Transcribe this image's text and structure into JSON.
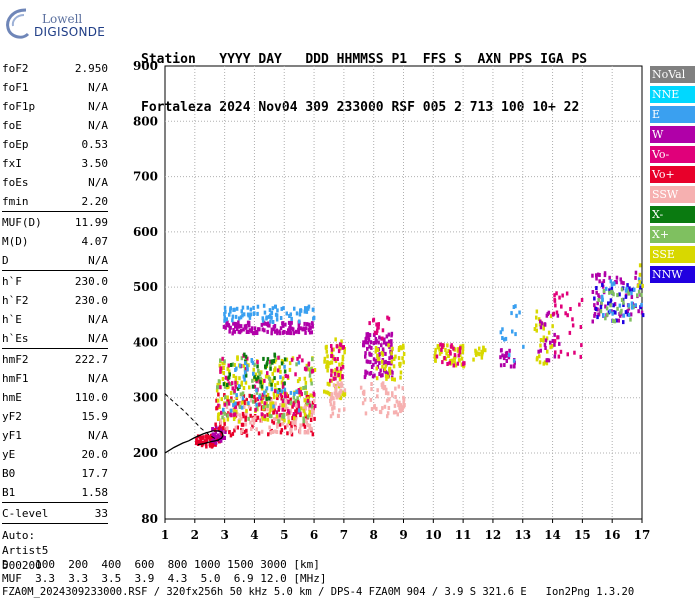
{
  "logo": {
    "line1": "Lowell",
    "line2": "DIGISONDE"
  },
  "header": {
    "row1": "Station   YYYY DAY   DDD HHMMSS P1  FFS S  AXN PPS IGA PS",
    "row2": "Fortaleza 2024 Nov04 309 233000 RSF 005 2 713 100 10+ 22"
  },
  "params": {
    "group1": [
      {
        "k": "foF2",
        "v": "2.950"
      },
      {
        "k": "foF1",
        "v": "N/A"
      },
      {
        "k": "foF1p",
        "v": "N/A"
      },
      {
        "k": "foE",
        "v": "N/A"
      },
      {
        "k": "foEp",
        "v": "0.53"
      },
      {
        "k": "fxI",
        "v": "3.50"
      },
      {
        "k": "foEs",
        "v": "N/A"
      },
      {
        "k": "fmin",
        "v": "2.20"
      }
    ],
    "group2": [
      {
        "k": "MUF(D)",
        "v": "11.99"
      },
      {
        "k": "M(D)",
        "v": "4.07"
      },
      {
        "k": "D",
        "v": "N/A"
      }
    ],
    "group3": [
      {
        "k": "h`F",
        "v": "230.0"
      },
      {
        "k": "h`F2",
        "v": "230.0"
      },
      {
        "k": "h`E",
        "v": "N/A"
      },
      {
        "k": "h`Es",
        "v": "N/A"
      }
    ],
    "group4": [
      {
        "k": "hmF2",
        "v": "222.7"
      },
      {
        "k": "hmF1",
        "v": "N/A"
      },
      {
        "k": "hmE",
        "v": "110.0"
      },
      {
        "k": "yF2",
        "v": "15.9"
      },
      {
        "k": "yF1",
        "v": "N/A"
      },
      {
        "k": "yE",
        "v": "20.0"
      },
      {
        "k": "B0",
        "v": "17.7"
      },
      {
        "k": "B1",
        "v": "1.58"
      }
    ],
    "group5": [
      {
        "k": "C-level",
        "v": "33"
      }
    ],
    "extra": [
      "Auto:",
      "Artist5",
      "500200"
    ]
  },
  "footer": {
    "row1": "D    100  200  400  600  800 1000 1500 3000 [km]",
    "row2": "MUF  3.3  3.3  3.5  3.9  4.3  5.0  6.9 12.0 [MHz]",
    "row3": "FZA0M_2024309233000.RSF / 320fx256h 50 kHz 5.0 km / DPS-4 FZA0M 904 / 3.9 S 321.6 E   Ion2Png 1.3.20"
  },
  "legend": [
    {
      "label": "NoVal",
      "color": "#808080",
      "text": "#ffffff"
    },
    {
      "label": "NNE",
      "color": "#00d8ff",
      "text": "#ffffff"
    },
    {
      "label": "E",
      "color": "#3aa0f0",
      "text": "#ffffff"
    },
    {
      "label": "W",
      "color": "#b000a8",
      "text": "#ffffff"
    },
    {
      "label": "Vo-",
      "color": "#e0007a",
      "text": "#ffffff"
    },
    {
      "label": "Vo+",
      "color": "#e8002a",
      "text": "#ffffff"
    },
    {
      "label": "SSW",
      "color": "#f6b0b0",
      "text": "#ffffff"
    },
    {
      "label": "X-",
      "color": "#0a7a10",
      "text": "#ffffff"
    },
    {
      "label": "X+",
      "color": "#7fc060",
      "text": "#ffffff"
    },
    {
      "label": "SSE",
      "color": "#d8d800",
      "text": "#ffffff"
    },
    {
      "label": "NNW",
      "color": "#2000e0",
      "text": "#ffffff"
    }
  ],
  "chart_data": {
    "type": "scatter",
    "xlabel": "",
    "ylabel": "",
    "xlim": [
      1,
      17
    ],
    "ylim": [
      80,
      900
    ],
    "xticks": [
      1,
      2,
      3,
      4,
      5,
      6,
      7,
      8,
      9,
      10,
      11,
      12,
      13,
      14,
      15,
      16,
      17
    ],
    "yticks": [
      80,
      200,
      300,
      400,
      500,
      600,
      700,
      800,
      900
    ],
    "grid": "dashed",
    "trace_profile": {
      "description_free": true,
      "x": [
        2.1,
        2.3,
        2.5,
        2.7,
        2.8,
        2.9,
        2.95,
        2.9,
        2.8,
        2.6,
        2.3,
        2.0,
        1.8,
        1.6,
        1.3,
        1.0
      ],
      "y": [
        215,
        217,
        220,
        222,
        224,
        227,
        232,
        238,
        240,
        240,
        235,
        228,
        222,
        218,
        210,
        200
      ]
    },
    "trace_dashed": {
      "x": [
        1.0,
        1.3,
        1.6,
        1.9,
        2.2,
        2.5,
        2.8
      ],
      "y": [
        307,
        292,
        278,
        262,
        245,
        232,
        222
      ]
    },
    "echo_clusters": [
      {
        "x": [
          2.0,
          2.8
        ],
        "y": [
          215,
          235
        ],
        "color": "#e8002a",
        "n": 60
      },
      {
        "x": [
          2.5,
          3.0
        ],
        "y": [
          222,
          250
        ],
        "color": "#b000a8",
        "n": 30
      },
      {
        "x": [
          2.6,
          6.0
        ],
        "y": [
          235,
          310
        ],
        "color": "#e8002a",
        "n": 140
      },
      {
        "x": [
          2.8,
          6.0
        ],
        "y": [
          240,
          300
        ],
        "color": "#f6b0b0",
        "n": 120
      },
      {
        "x": [
          2.7,
          6.0
        ],
        "y": [
          260,
          380
        ],
        "color": "#d8d800",
        "n": 170
      },
      {
        "x": [
          2.7,
          6.0
        ],
        "y": [
          260,
          380
        ],
        "color": "#7fc060",
        "n": 80
      },
      {
        "x": [
          2.7,
          6.0
        ],
        "y": [
          270,
          380
        ],
        "color": "#e0007a",
        "n": 90
      },
      {
        "x": [
          2.9,
          5.0
        ],
        "y": [
          300,
          390
        ],
        "color": "#0a7a10",
        "n": 40
      },
      {
        "x": [
          2.9,
          5.5
        ],
        "y": [
          280,
          380
        ],
        "color": "#3aa0f0",
        "n": 40
      },
      {
        "x": [
          2.9,
          6.0
        ],
        "y": [
          420,
          440
        ],
        "color": "#b000a8",
        "n": 120
      },
      {
        "x": [
          2.9,
          6.0
        ],
        "y": [
          440,
          470
        ],
        "color": "#3aa0f0",
        "n": 80
      },
      {
        "x": [
          6.3,
          7.0
        ],
        "y": [
          300,
          410
        ],
        "color": "#d8d800",
        "n": 60
      },
      {
        "x": [
          6.5,
          7.0
        ],
        "y": [
          270,
          330
        ],
        "color": "#f6b0b0",
        "n": 40
      },
      {
        "x": [
          6.5,
          7.0
        ],
        "y": [
          330,
          400
        ],
        "color": "#e0007a",
        "n": 25
      },
      {
        "x": [
          7.6,
          8.6
        ],
        "y": [
          340,
          420
        ],
        "color": "#b000a8",
        "n": 100
      },
      {
        "x": [
          7.5,
          9.0
        ],
        "y": [
          270,
          330
        ],
        "color": "#f6b0b0",
        "n": 60
      },
      {
        "x": [
          8.0,
          9.0
        ],
        "y": [
          330,
          400
        ],
        "color": "#d8d800",
        "n": 45
      },
      {
        "x": [
          7.8,
          8.5
        ],
        "y": [
          410,
          450
        ],
        "color": "#e0007a",
        "n": 15
      },
      {
        "x": [
          10.0,
          11.0
        ],
        "y": [
          360,
          400
        ],
        "color": "#d8d800",
        "n": 55
      },
      {
        "x": [
          10.0,
          11.0
        ],
        "y": [
          360,
          400
        ],
        "color": "#e0007a",
        "n": 25
      },
      {
        "x": [
          11.3,
          11.8
        ],
        "y": [
          370,
          395
        ],
        "color": "#d8d800",
        "n": 18
      },
      {
        "x": [
          12.2,
          12.7
        ],
        "y": [
          360,
          400
        ],
        "color": "#b000a8",
        "n": 20
      },
      {
        "x": [
          12.2,
          13.0
        ],
        "y": [
          370,
          470
        ],
        "color": "#3aa0f0",
        "n": 15
      },
      {
        "x": [
          13.3,
          14.0
        ],
        "y": [
          360,
          460
        ],
        "color": "#d8d800",
        "n": 30
      },
      {
        "x": [
          13.3,
          14.2
        ],
        "y": [
          370,
          460
        ],
        "color": "#b000a8",
        "n": 25
      },
      {
        "x": [
          14.0,
          15.0
        ],
        "y": [
          370,
          500
        ],
        "color": "#e0007a",
        "n": 30
      },
      {
        "x": [
          15.2,
          17.0
        ],
        "y": [
          440,
          530
        ],
        "color": "#b000a8",
        "n": 60
      },
      {
        "x": [
          15.3,
          17.0
        ],
        "y": [
          440,
          510
        ],
        "color": "#2000e0",
        "n": 35
      },
      {
        "x": [
          15.5,
          17.0
        ],
        "y": [
          440,
          500
        ],
        "color": "#7fc060",
        "n": 30
      },
      {
        "x": [
          15.5,
          17.0
        ],
        "y": [
          450,
          520
        ],
        "color": "#3aa0f0",
        "n": 25
      },
      {
        "x": [
          16.8,
          17.0
        ],
        "y": [
          500,
          545
        ],
        "color": "#d8d800",
        "n": 5
      }
    ]
  }
}
